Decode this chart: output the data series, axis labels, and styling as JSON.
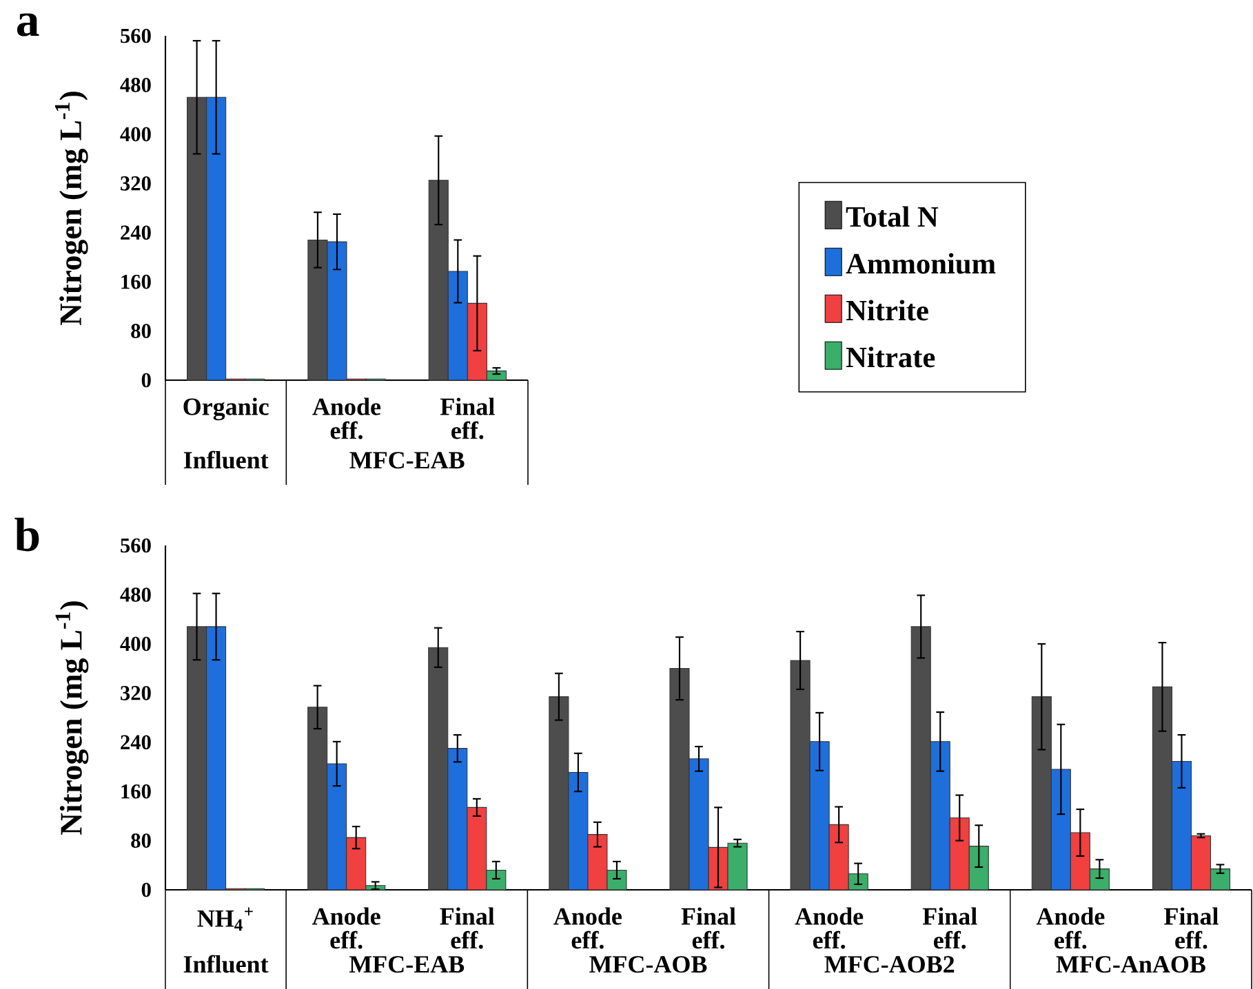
{
  "chart_data": [
    {
      "type": "bar",
      "title": "a",
      "ylabel": "Nitrogen (mg L$^{-1}$)",
      "categories": [
        "Organic",
        "Anode eff.",
        "Final eff."
      ],
      "annotations": [
        "Influent",
        "MFC-EAB"
      ],
      "series": [
        {
          "name": "Total N",
          "color": "#4d4d4d",
          "values": [
            460,
            228,
            325
          ],
          "errors": [
            92,
            45,
            72
          ]
        },
        {
          "name": "Ammonium",
          "color": "#1e6fdc",
          "values": [
            460,
            225,
            177
          ],
          "errors": [
            92,
            45,
            51
          ]
        },
        {
          "name": "Nitrite",
          "color": "#f04040",
          "values": [
            2,
            2,
            125
          ],
          "errors": [
            null,
            null,
            77
          ]
        },
        {
          "name": "Nitrate",
          "color": "#3aae6a",
          "values": [
            2,
            2,
            15
          ],
          "errors": [
            null,
            null,
            5
          ]
        }
      ],
      "ylim": [
        0,
        560
      ],
      "yticks": [
        0,
        80,
        160,
        240,
        320,
        400,
        480,
        560
      ],
      "grid": false,
      "legend": "right"
    },
    {
      "type": "bar",
      "title": "b",
      "ylabel": "Nitrogen (mg L$^{-1}$)",
      "categories": [
        "NH$_{4}$$^{+}$",
        "Anode eff.",
        "Final eff.",
        "Anode eff.",
        "Final eff.",
        "Anode eff.",
        "Final eff.",
        "Anode eff.",
        "Final eff."
      ],
      "annotations": [
        "Influent",
        "MFC-EAB",
        "MFC-AOB",
        "MFC-AOB2",
        "MFC-AnAOB"
      ],
      "series": [
        {
          "color": "#4d4d4d",
          "values": [
            428,
            297,
            394,
            314,
            360,
            373,
            428,
            314,
            330
          ],
          "errors": [
            54,
            35,
            32,
            38,
            51,
            47,
            51,
            86,
            72
          ]
        },
        {
          "color": "#1e6fdc",
          "values": [
            428,
            205,
            230,
            191,
            213,
            241,
            241,
            196,
            209
          ],
          "errors": [
            54,
            36,
            22,
            31,
            20,
            47,
            48,
            73,
            43
          ]
        },
        {
          "color": "#f04040",
          "values": [
            2,
            85,
            134,
            90,
            69,
            106,
            117,
            93,
            88
          ],
          "errors": [
            null,
            18,
            14,
            20,
            65,
            29,
            37,
            38,
            3
          ]
        },
        {
          "color": "#3aae6a",
          "values": [
            2,
            7,
            32,
            32,
            76,
            26,
            71,
            34,
            34
          ],
          "errors": [
            null,
            6,
            14,
            14,
            6,
            17,
            34,
            15,
            7
          ]
        }
      ],
      "ylim": [
        0,
        560
      ],
      "yticks": [
        0,
        80,
        160,
        240,
        320,
        400,
        480,
        560
      ],
      "grid": false,
      "legend": false
    }
  ]
}
